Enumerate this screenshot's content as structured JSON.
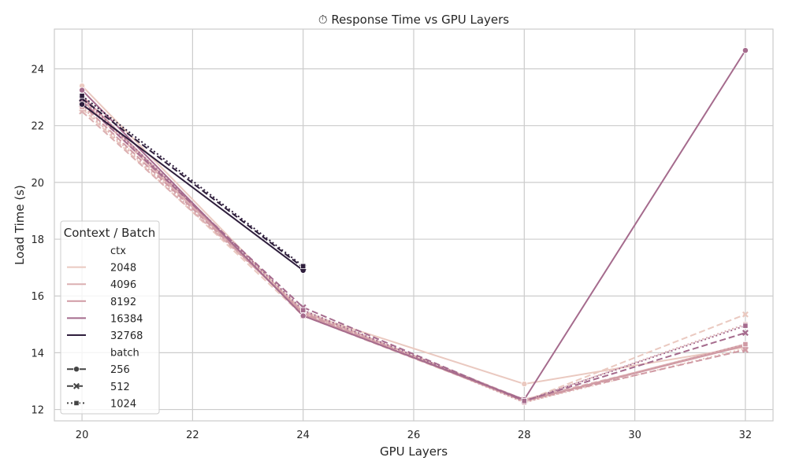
{
  "chart_data": {
    "type": "line",
    "title": "⏱ Response Time vs GPU Layers",
    "xlabel": "GPU Layers",
    "ylabel": "Load Time (s)",
    "xlim": [
      19.5,
      32.5
    ],
    "ylim": [
      11.6,
      25.4
    ],
    "xticks": [
      20,
      22,
      24,
      26,
      28,
      30,
      32
    ],
    "yticks": [
      12,
      14,
      16,
      18,
      20,
      22,
      24
    ],
    "grid": true,
    "legend": {
      "title": "Context / Batch",
      "placement": "lower-left",
      "hue_title": "ctx",
      "style_title": "batch",
      "ctx_entries": [
        "2048",
        "4096",
        "8192",
        "16384",
        "32768"
      ],
      "batch_entries": [
        "256",
        "512",
        "1024"
      ]
    },
    "colors": {
      "2048": "#eac9c0",
      "4096": "#dcb0b2",
      "8192": "#d09aa4",
      "16384": "#a56b8d",
      "32768": "#2e1e3c"
    },
    "batch_styles": {
      "256": {
        "dash": "",
        "marker": "circle"
      },
      "512": {
        "dash": "8,4",
        "marker": "x"
      },
      "1024": {
        "dash": "2,3",
        "marker": "square"
      }
    },
    "series": [
      {
        "ctx": "2048",
        "batch": "256",
        "x": [
          20,
          24,
          28,
          32
        ],
        "y": [
          23.4,
          15.4,
          12.9,
          14.2
        ]
      },
      {
        "ctx": "2048",
        "batch": "512",
        "x": [
          20,
          24,
          28,
          32
        ],
        "y": [
          22.6,
          15.3,
          12.3,
          15.35
        ]
      },
      {
        "ctx": "2048",
        "batch": "1024",
        "x": [
          20,
          24,
          28,
          32
        ],
        "y": [
          22.7,
          15.5,
          12.25,
          14.15
        ]
      },
      {
        "ctx": "4096",
        "batch": "256",
        "x": [
          20,
          24,
          28,
          32
        ],
        "y": [
          22.9,
          15.35,
          12.3,
          14.3
        ]
      },
      {
        "ctx": "4096",
        "batch": "512",
        "x": [
          20,
          24,
          28,
          32
        ],
        "y": [
          22.5,
          15.45,
          12.35,
          14.25
        ]
      },
      {
        "ctx": "4096",
        "batch": "1024",
        "x": [
          20,
          24,
          28,
          32
        ],
        "y": [
          22.65,
          15.4,
          12.3,
          15.0
        ]
      },
      {
        "ctx": "8192",
        "batch": "256",
        "x": [
          20,
          24,
          28,
          32
        ],
        "y": [
          23.05,
          15.35,
          12.3,
          14.25
        ]
      },
      {
        "ctx": "8192",
        "batch": "512",
        "x": [
          20,
          24,
          28,
          32
        ],
        "y": [
          22.75,
          15.4,
          12.3,
          14.1
        ]
      },
      {
        "ctx": "8192",
        "batch": "1024",
        "x": [
          20,
          24,
          28,
          32
        ],
        "y": [
          22.95,
          15.45,
          12.25,
          14.3
        ]
      },
      {
        "ctx": "16384",
        "batch": "256",
        "x": [
          20,
          24,
          28,
          32
        ],
        "y": [
          23.25,
          15.3,
          12.35,
          24.65
        ]
      },
      {
        "ctx": "16384",
        "batch": "512",
        "x": [
          20,
          24,
          28,
          32
        ],
        "y": [
          22.85,
          15.6,
          12.3,
          14.7
        ]
      },
      {
        "ctx": "16384",
        "batch": "1024",
        "x": [
          20,
          24,
          28,
          32
        ],
        "y": [
          23.0,
          15.5,
          12.3,
          14.95
        ]
      },
      {
        "ctx": "32768",
        "batch": "256",
        "x": [
          20,
          24
        ],
        "y": [
          22.75,
          16.9
        ]
      },
      {
        "ctx": "32768",
        "batch": "512",
        "x": [
          20,
          24
        ],
        "y": [
          22.95,
          17.0
        ]
      },
      {
        "ctx": "32768",
        "batch": "1024",
        "x": [
          20,
          24
        ],
        "y": [
          23.05,
          17.05
        ]
      }
    ]
  }
}
